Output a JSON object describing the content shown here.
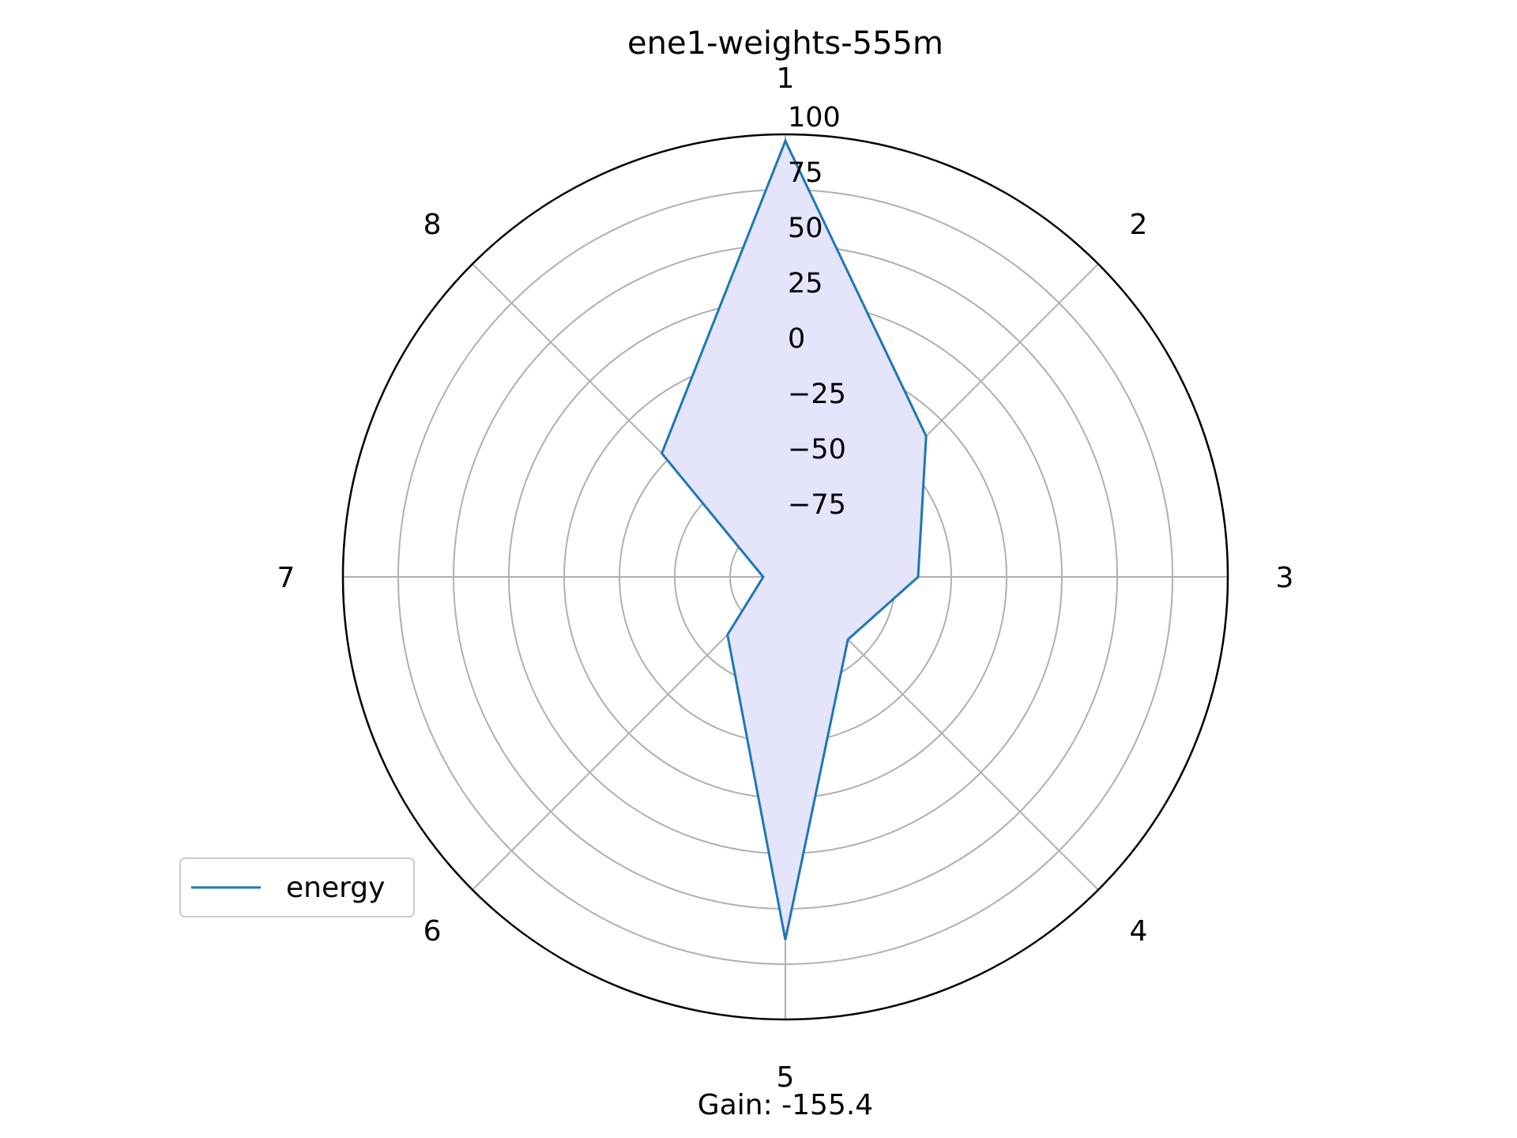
{
  "chart_data": {
    "type": "radar",
    "title": "ene1-weights-555m",
    "categories": [
      "1",
      "2",
      "3",
      "4",
      "5",
      "6",
      "7",
      "8"
    ],
    "radial_ticks": [
      -75,
      -50,
      -25,
      0,
      25,
      50,
      75,
      100
    ],
    "tick_labels": [
      "−75",
      "−50",
      "−25",
      "0",
      "25",
      "50",
      "75",
      "100"
    ],
    "rlim": [
      -100,
      100
    ],
    "grid": true,
    "legend_position": "lower-left",
    "series": [
      {
        "name": "energy",
        "values": [
          97,
          -10,
          -40,
          -60,
          64,
          -63,
          -90,
          -21
        ],
        "color": "#1f77b4",
        "fill": "#e4e4fb"
      }
    ],
    "annotation": "Gain: -155.4"
  }
}
